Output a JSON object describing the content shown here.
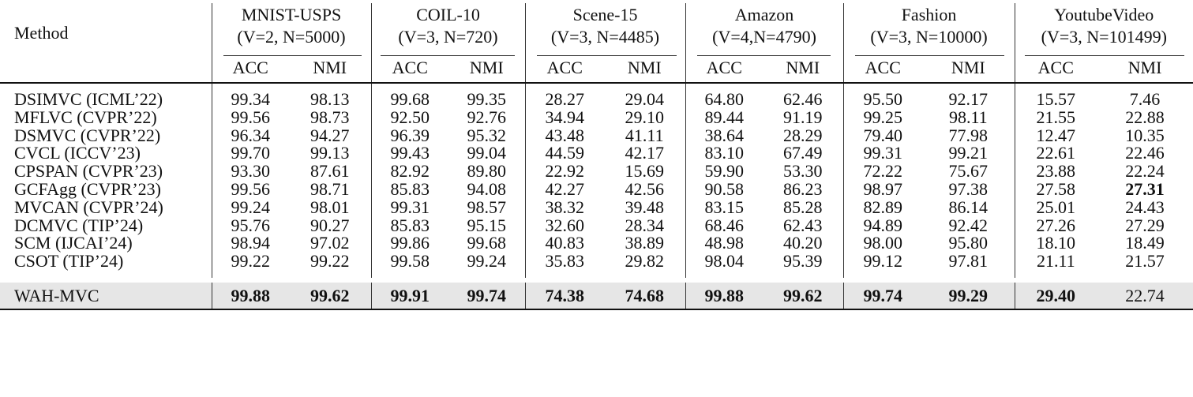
{
  "header": {
    "method_label": "Method",
    "datasets": [
      {
        "name": "MNIST-USPS",
        "params": "(V=2, N=5000)"
      },
      {
        "name": "COIL-10",
        "params": "(V=3, N=720)"
      },
      {
        "name": "Scene-15",
        "params": "(V=3, N=4485)"
      },
      {
        "name": "Amazon",
        "params": "(V=4,N=4790)"
      },
      {
        "name": "Fashion",
        "params": "(V=3, N=10000)"
      },
      {
        "name": "YoutubeVideo",
        "params": "(V=3, N=101499)"
      }
    ],
    "metrics": [
      "ACC",
      "NMI"
    ]
  },
  "rows": [
    {
      "method": "DSIMVC (ICML’22)",
      "values": [
        "99.34",
        "98.13",
        "99.68",
        "99.35",
        "28.27",
        "29.04",
        "64.80",
        "62.46",
        "95.50",
        "92.17",
        "15.57",
        "7.46"
      ],
      "bold": []
    },
    {
      "method": "MFLVC (CVPR’22)",
      "values": [
        "99.56",
        "98.73",
        "92.50",
        "92.76",
        "34.94",
        "29.10",
        "89.44",
        "91.19",
        "99.25",
        "98.11",
        "21.55",
        "22.88"
      ],
      "bold": []
    },
    {
      "method": "DSMVC (CVPR’22)",
      "values": [
        "96.34",
        "94.27",
        "96.39",
        "95.32",
        "43.48",
        "41.11",
        "38.64",
        "28.29",
        "79.40",
        "77.98",
        "12.47",
        "10.35"
      ],
      "bold": []
    },
    {
      "method": "CVCL (ICCV’23)",
      "values": [
        "99.70",
        "99.13",
        "99.43",
        "99.04",
        "44.59",
        "42.17",
        "83.10",
        "67.49",
        "99.31",
        "99.21",
        "22.61",
        "22.46"
      ],
      "bold": []
    },
    {
      "method": "CPSPAN (CVPR’23)",
      "values": [
        "93.30",
        "87.61",
        "82.92",
        "89.80",
        "22.92",
        "15.69",
        "59.90",
        "53.30",
        "72.22",
        "75.67",
        "23.88",
        "22.24"
      ],
      "bold": []
    },
    {
      "method": "GCFAgg (CVPR’23)",
      "values": [
        "99.56",
        "98.71",
        "85.83",
        "94.08",
        "42.27",
        "42.56",
        "90.58",
        "86.23",
        "98.97",
        "97.38",
        "27.58",
        "27.31"
      ],
      "bold": [
        11
      ]
    },
    {
      "method": "MVCAN (CVPR’24)",
      "values": [
        "99.24",
        "98.01",
        "99.31",
        "98.57",
        "38.32",
        "39.48",
        "83.15",
        "85.28",
        "82.89",
        "86.14",
        "25.01",
        "24.43"
      ],
      "bold": []
    },
    {
      "method": "DCMVC (TIP’24)",
      "values": [
        "95.76",
        "90.27",
        "85.83",
        "95.15",
        "32.60",
        "28.34",
        "68.46",
        "62.43",
        "94.89",
        "92.42",
        "27.26",
        "27.29"
      ],
      "bold": []
    },
    {
      "method": "SCM (IJCAI’24)",
      "values": [
        "98.94",
        "97.02",
        "99.86",
        "99.68",
        "40.83",
        "38.89",
        "48.98",
        "40.20",
        "98.00",
        "95.80",
        "18.10",
        "18.49"
      ],
      "bold": []
    },
    {
      "method": "CSOT (TIP’24)",
      "values": [
        "99.22",
        "99.22",
        "99.58",
        "99.24",
        "35.83",
        "29.82",
        "98.04",
        "95.39",
        "99.12",
        "97.81",
        "21.11",
        "21.57"
      ],
      "bold": []
    }
  ],
  "ours": {
    "method": "WAH-MVC",
    "values": [
      "99.88",
      "99.62",
      "99.91",
      "99.74",
      "74.38",
      "74.68",
      "99.88",
      "99.62",
      "99.74",
      "99.29",
      "29.40",
      "22.74"
    ],
    "bold": [
      0,
      1,
      2,
      3,
      4,
      5,
      6,
      7,
      8,
      9,
      10
    ]
  }
}
